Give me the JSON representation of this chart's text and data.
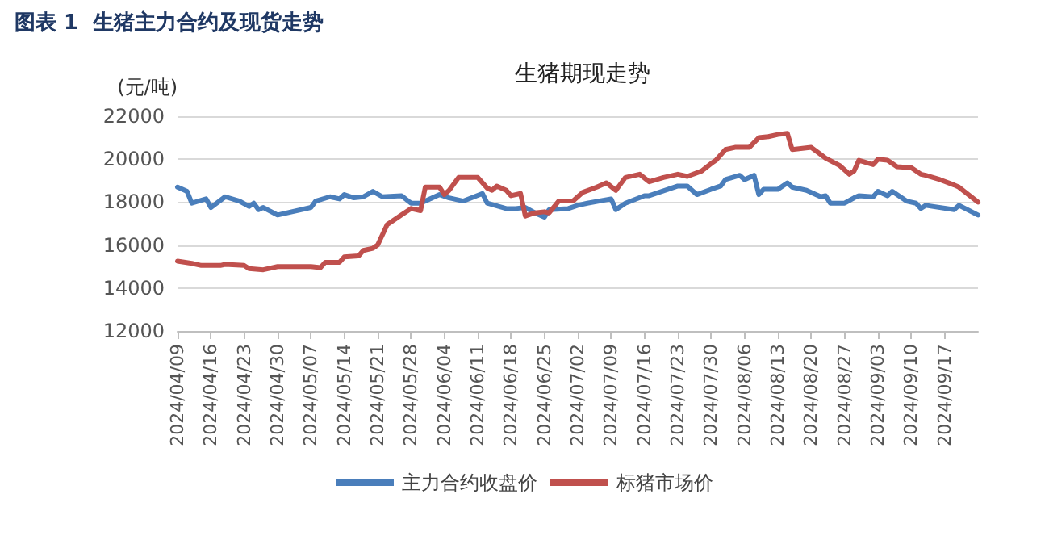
{
  "chart_data": {
    "type": "line",
    "title": "图表 1  生猪主力合约及现货走势",
    "subtitle": "生猪期现走势",
    "ylabel": "(元/吨)",
    "xlim": [
      "2024-04-09",
      "2024-09-24"
    ],
    "xticks": [
      {
        "value": "2024-04-09",
        "label": "2024/04/09"
      },
      {
        "value": "2024-04-16",
        "label": "2024/04/16"
      },
      {
        "value": "2024-04-23",
        "label": "2024/04/23"
      },
      {
        "value": "2024-04-30",
        "label": "2024/04/30"
      },
      {
        "value": "2024-05-07",
        "label": "2024/05/07"
      },
      {
        "value": "2024-05-14",
        "label": "2024/05/14"
      },
      {
        "value": "2024-05-21",
        "label": "2024/05/21"
      },
      {
        "value": "2024-05-28",
        "label": "2024/05/28"
      },
      {
        "value": "2024-06-04",
        "label": "2024/06/04"
      },
      {
        "value": "2024-06-11",
        "label": "2024/06/11"
      },
      {
        "value": "2024-06-18",
        "label": "2024/06/18"
      },
      {
        "value": "2024-06-25",
        "label": "2024/06/25"
      },
      {
        "value": "2024-07-02",
        "label": "2024/07/02"
      },
      {
        "value": "2024-07-09",
        "label": "2024/07/09"
      },
      {
        "value": "2024-07-16",
        "label": "2024/07/16"
      },
      {
        "value": "2024-07-23",
        "label": "2024/07/23"
      },
      {
        "value": "2024-07-30",
        "label": "2024/07/30"
      },
      {
        "value": "2024-08-06",
        "label": "2024/08/06"
      },
      {
        "value": "2024-08-13",
        "label": "2024/08/13"
      },
      {
        "value": "2024-08-20",
        "label": "2024/08/20"
      },
      {
        "value": "2024-08-27",
        "label": "2024/08/27"
      },
      {
        "value": "2024-09-03",
        "label": "2024/09/03"
      },
      {
        "value": "2024-09-10",
        "label": "2024/09/10"
      },
      {
        "value": "2024-09-17",
        "label": "2024/09/17"
      }
    ],
    "ylim": [
      12000,
      22000
    ],
    "yticks": [
      12000,
      14000,
      16000,
      18000,
      20000,
      22000
    ],
    "grid": "y",
    "legend": "bottom",
    "marker": "none",
    "line_style": "solid",
    "series": [
      {
        "name": "主力合约收盘价",
        "color": "#4a7ebb",
        "x": [
          "2024-04-09",
          "2024-04-11",
          "2024-04-12",
          "2024-04-15",
          "2024-04-16",
          "2024-04-19",
          "2024-04-22",
          "2024-04-24",
          "2024-04-25",
          "2024-04-26",
          "2024-04-27",
          "2024-04-30",
          "2024-05-07",
          "2024-05-08",
          "2024-05-11",
          "2024-05-13",
          "2024-05-14",
          "2024-05-16",
          "2024-05-18",
          "2024-05-20",
          "2024-05-22",
          "2024-05-26",
          "2024-05-28",
          "2024-05-30",
          "2024-06-03",
          "2024-06-05",
          "2024-06-08",
          "2024-06-12",
          "2024-06-13",
          "2024-06-17",
          "2024-06-19",
          "2024-06-21",
          "2024-06-23",
          "2024-06-25",
          "2024-06-26",
          "2024-06-30",
          "2024-07-02",
          "2024-07-04",
          "2024-07-09",
          "2024-07-10",
          "2024-07-12",
          "2024-07-16",
          "2024-07-17",
          "2024-07-23",
          "2024-07-25",
          "2024-07-27",
          "2024-07-30",
          "2024-08-01",
          "2024-08-02",
          "2024-08-05",
          "2024-08-06",
          "2024-08-08",
          "2024-08-09",
          "2024-08-10",
          "2024-08-13",
          "2024-08-15",
          "2024-08-16",
          "2024-08-19",
          "2024-08-22",
          "2024-08-23",
          "2024-08-24",
          "2024-08-27",
          "2024-08-29",
          "2024-08-30",
          "2024-09-02",
          "2024-09-03",
          "2024-09-05",
          "2024-09-06",
          "2024-09-09",
          "2024-09-11",
          "2024-09-12",
          "2024-09-13",
          "2024-09-19",
          "2024-09-20",
          "2024-09-24"
        ],
        "values": [
          18700,
          18500,
          17950,
          18150,
          17750,
          18250,
          18050,
          17800,
          17950,
          17650,
          17750,
          17400,
          17750,
          18050,
          18250,
          18150,
          18350,
          18200,
          18250,
          18500,
          18250,
          18300,
          17950,
          17950,
          18350,
          18200,
          18050,
          18400,
          17950,
          17700,
          17700,
          17750,
          17500,
          17300,
          17650,
          17700,
          17850,
          17950,
          18150,
          17650,
          17950,
          18300,
          18300,
          18750,
          18750,
          18350,
          18600,
          18750,
          19050,
          19250,
          19050,
          19250,
          18350,
          18600,
          18600,
          18900,
          18700,
          18550,
          18250,
          18300,
          17950,
          17950,
          18200,
          18300,
          18250,
          18500,
          18300,
          18500,
          18050,
          17950,
          17700,
          17850,
          17650,
          17850,
          17400
        ]
      },
      {
        "name": "标猪市场价",
        "color": "#c0504d",
        "x": [
          "2024-04-09",
          "2024-04-12",
          "2024-04-14",
          "2024-04-18",
          "2024-04-19",
          "2024-04-23",
          "2024-04-24",
          "2024-04-27",
          "2024-04-30",
          "2024-05-07",
          "2024-05-09",
          "2024-05-10",
          "2024-05-13",
          "2024-05-14",
          "2024-05-17",
          "2024-05-18",
          "2024-05-20",
          "2024-05-21",
          "2024-05-23",
          "2024-05-26",
          "2024-05-28",
          "2024-05-30",
          "2024-05-31",
          "2024-06-03",
          "2024-06-04",
          "2024-06-05",
          "2024-06-07",
          "2024-06-11",
          "2024-06-13",
          "2024-06-14",
          "2024-06-15",
          "2024-06-17",
          "2024-06-18",
          "2024-06-20",
          "2024-06-21",
          "2024-06-23",
          "2024-06-25",
          "2024-06-26",
          "2024-06-28",
          "2024-07-01",
          "2024-07-03",
          "2024-07-06",
          "2024-07-08",
          "2024-07-10",
          "2024-07-12",
          "2024-07-15",
          "2024-07-17",
          "2024-07-20",
          "2024-07-23",
          "2024-07-25",
          "2024-07-28",
          "2024-07-30",
          "2024-07-31",
          "2024-08-02",
          "2024-08-04",
          "2024-08-07",
          "2024-08-09",
          "2024-08-11",
          "2024-08-13",
          "2024-08-15",
          "2024-08-16",
          "2024-08-20",
          "2024-08-23",
          "2024-08-26",
          "2024-08-28",
          "2024-08-29",
          "2024-08-30",
          "2024-09-02",
          "2024-09-03",
          "2024-09-05",
          "2024-09-07",
          "2024-09-10",
          "2024-09-12",
          "2024-09-13",
          "2024-09-16",
          "2024-09-19",
          "2024-09-20",
          "2024-09-24"
        ],
        "values": [
          15250,
          15150,
          15050,
          15050,
          15100,
          15050,
          14900,
          14850,
          15000,
          15000,
          14950,
          15200,
          15200,
          15450,
          15500,
          15750,
          15850,
          16000,
          16950,
          17400,
          17700,
          17600,
          18700,
          18700,
          18350,
          18550,
          19150,
          19150,
          18650,
          18550,
          18750,
          18550,
          18300,
          18400,
          17350,
          17500,
          17550,
          17500,
          18050,
          18050,
          18450,
          18700,
          18900,
          18550,
          19150,
          19300,
          18950,
          19150,
          19300,
          19200,
          19450,
          19800,
          19950,
          20450,
          20550,
          20550,
          21000,
          21050,
          21150,
          21200,
          20450,
          20550,
          20050,
          19700,
          19300,
          19450,
          19950,
          19750,
          20000,
          19950,
          19650,
          19600,
          19300,
          19250,
          19050,
          18800,
          18700,
          18000
        ]
      }
    ]
  }
}
